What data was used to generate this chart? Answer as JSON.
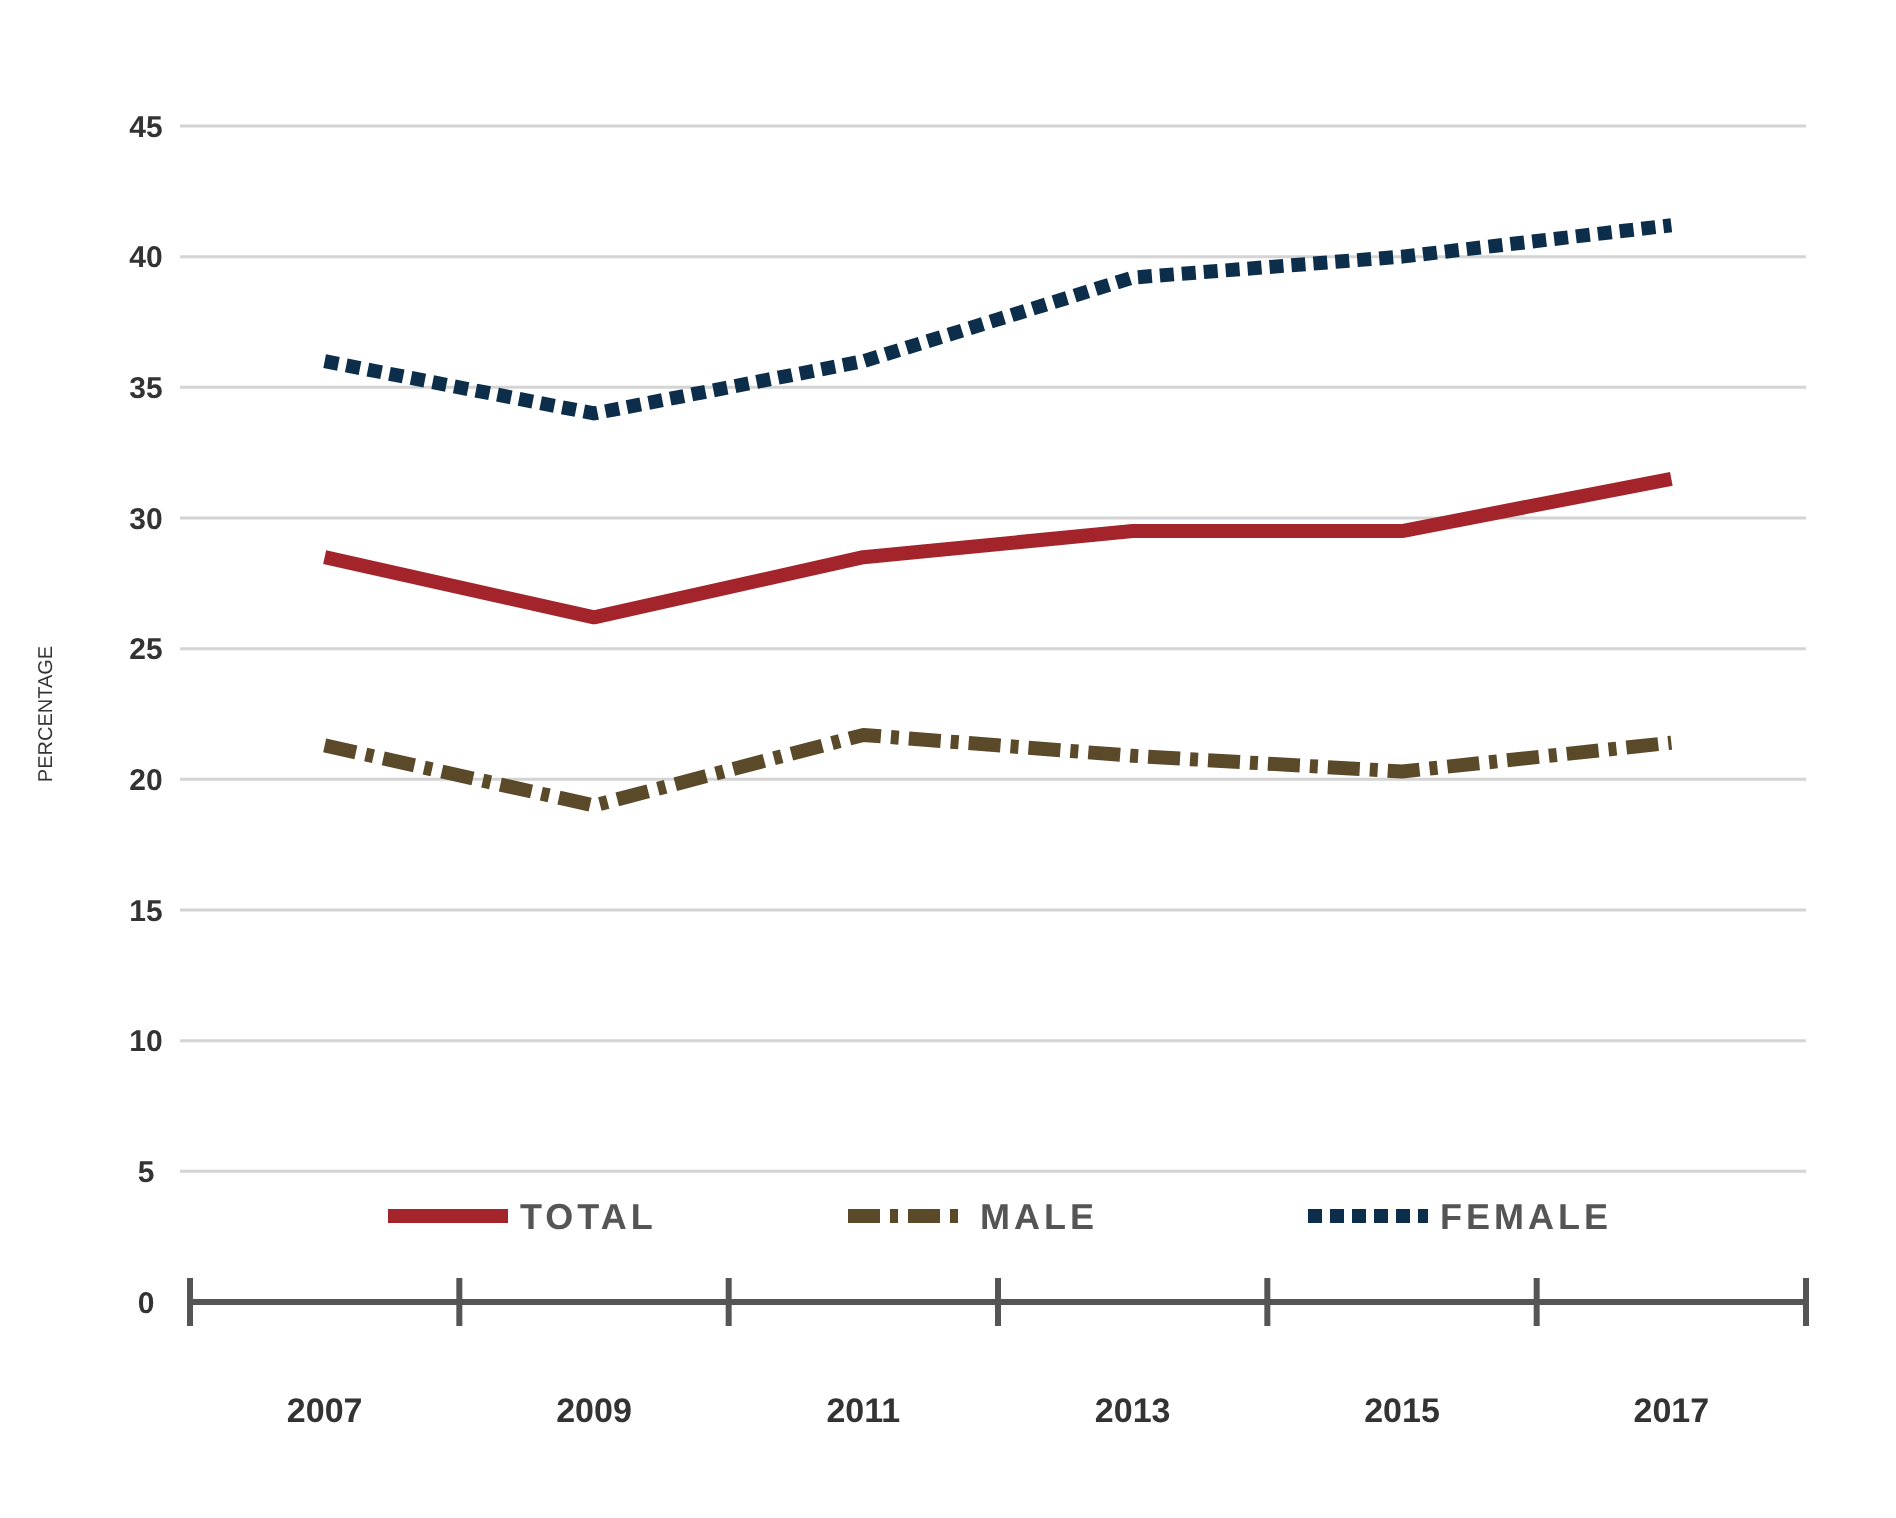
{
  "chart_data": {
    "type": "line",
    "ylabel": "PERCENTAGE",
    "categories": [
      "2007",
      "2009",
      "2011",
      "2013",
      "2015",
      "2017"
    ],
    "series": [
      {
        "name": "TOTAL",
        "color": "#a3252b",
        "line_style": "solid",
        "values": [
          28.5,
          26.2,
          28.5,
          29.5,
          29.5,
          31.5
        ]
      },
      {
        "name": "MALE",
        "color": "#5a4a2a",
        "line_style": "dashed",
        "values": [
          21.3,
          19.0,
          21.7,
          20.9,
          20.3,
          21.4
        ]
      },
      {
        "name": "FEMALE",
        "color": "#0d2e4a",
        "line_style": "dotted",
        "values": [
          36.0,
          34.0,
          36.0,
          39.2,
          40.0,
          41.2
        ]
      }
    ],
    "ylim": [
      0,
      45
    ],
    "yticks": [
      0,
      5,
      10,
      15,
      20,
      25,
      30,
      35,
      40,
      45
    ],
    "grid": "y",
    "legend": "bottom",
    "marker": "none"
  }
}
